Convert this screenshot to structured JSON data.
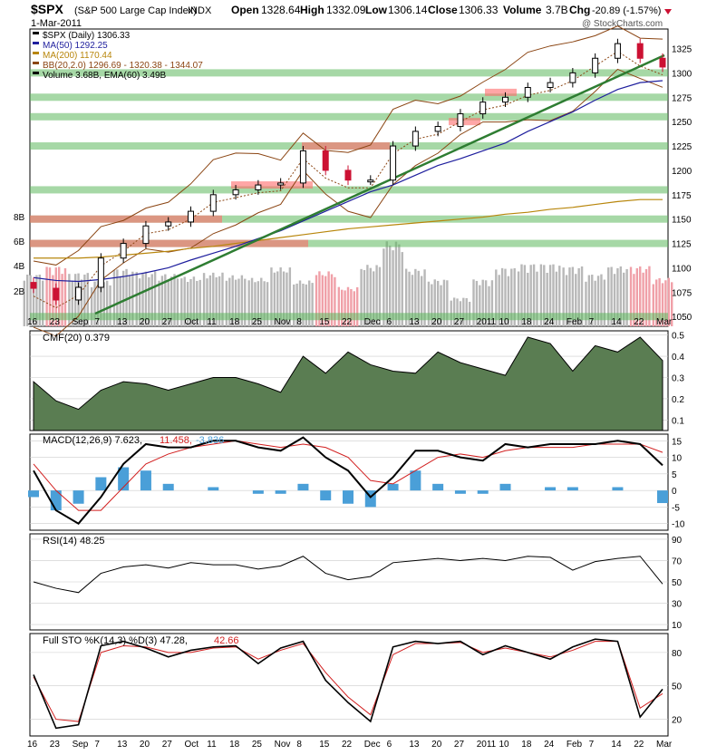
{
  "header": {
    "symbol": "$SPX",
    "name": "(S&P 500 Large Cap Index)",
    "exchange": "INDX",
    "date": "1-Mar-2011",
    "open_label": "Open",
    "open": "1328.64",
    "high_label": "High",
    "high": "1332.09",
    "low_label": "Low",
    "low": "1306.14",
    "close_label": "Close",
    "close": "1306.33",
    "volume_label": "Volume",
    "volume": "3.7B",
    "chg_label": "Chg",
    "chg": "-20.89 (-1.57%)",
    "watermark": "@ StockCharts.com"
  },
  "price_legend": [
    {
      "text": "$SPX (Daily) 1306.33",
      "color": "#000000"
    },
    {
      "text": "MA(50) 1292.25",
      "color": "#1f1f9e"
    },
    {
      "text": "MA(200) 1170.44",
      "color": "#b8860b"
    },
    {
      "text": "BB(20,2.0) 1296.69 - 1320.38 - 1344.07",
      "color": "#8b4513"
    },
    {
      "text": "Volume 3.68B, EMA(60) 3.49B",
      "color": "#000000"
    }
  ],
  "indicator_labels": {
    "cmf": "CMF(20) 0.379",
    "macd_prefix": "MACD(12,26,9) 7.623,",
    "macd_signal": "11.458,",
    "macd_hist": "-3.836",
    "rsi": "RSI(14) 48.25",
    "sto_prefix": "Full STO %K(14,3) %D(3) 47.28,",
    "sto_d": "42.66"
  },
  "x_axis_labels": [
    "16",
    "23",
    "Sep",
    "7",
    "13",
    "20",
    "27",
    "Oct",
    "11",
    "18",
    "25",
    "Nov",
    "8",
    "15",
    "22",
    "Dec",
    "6",
    "13",
    "20",
    "27",
    "2011",
    "10",
    "18",
    "24",
    "Feb",
    "7",
    "14",
    "22",
    "Mar"
  ],
  "colors": {
    "up": "#000000",
    "down": "#cc1133",
    "ma50": "#1f1f9e",
    "ma200": "#b8860b",
    "bb": "#8b4513",
    "trend": "#2e7d32",
    "support": "#5cb85c",
    "resist": "#ff6b6b",
    "cmf": "#5a7d52",
    "macd_hist": "#4a9fd8"
  },
  "chart_data": [
    {
      "type": "candlestick",
      "title": "$SPX (S&P 500 Large Cap Index)",
      "y_axis_right": [
        1050,
        1075,
        1100,
        1125,
        1150,
        1175,
        1200,
        1225,
        1250,
        1275,
        1300,
        1325
      ],
      "volume_axis_left": [
        "2B",
        "4B",
        "6B",
        "8B"
      ],
      "ylim": [
        1040,
        1345
      ],
      "x": [
        "Aug 16",
        "Aug 23",
        "Sep 1",
        "Sep 7",
        "Sep 13",
        "Sep 20",
        "Sep 27",
        "Oct 1",
        "Oct 11",
        "Oct 18",
        "Oct 25",
        "Nov 1",
        "Nov 8",
        "Nov 15",
        "Nov 22",
        "Dec 1",
        "Dec 6",
        "Dec 13",
        "Dec 20",
        "Dec 27",
        "Jan 3",
        "Jan 10",
        "Jan 18",
        "Jan 24",
        "Feb 1",
        "Feb 7",
        "Feb 14",
        "Feb 22",
        "Mar 1"
      ],
      "close": [
        1079,
        1067,
        1080,
        1110,
        1125,
        1143,
        1147,
        1158,
        1175,
        1180,
        1185,
        1187,
        1220,
        1200,
        1190,
        1190,
        1225,
        1240,
        1245,
        1258,
        1270,
        1275,
        1285,
        1290,
        1300,
        1315,
        1330,
        1315,
        1306
      ],
      "ma50": [
        1090,
        1087,
        1086,
        1088,
        1091,
        1095,
        1100,
        1108,
        1115,
        1122,
        1130,
        1138,
        1148,
        1158,
        1168,
        1178,
        1185,
        1195,
        1205,
        1212,
        1220,
        1228,
        1240,
        1250,
        1260,
        1272,
        1283,
        1290,
        1292
      ],
      "ma200": [
        1110,
        1110,
        1110,
        1111,
        1113,
        1115,
        1117,
        1120,
        1122,
        1125,
        1128,
        1131,
        1134,
        1137,
        1140,
        1142,
        1144,
        1146,
        1148,
        1150,
        1152,
        1155,
        1157,
        1160,
        1162,
        1165,
        1168,
        1170,
        1170
      ],
      "volume_billions": [
        4.0,
        4.6,
        4.1,
        3.5,
        4.4,
        4.2,
        4.0,
        3.8,
        4.1,
        3.9,
        3.7,
        4.5,
        3.5,
        4.2,
        3.0,
        4.7,
        6.5,
        4.4,
        3.6,
        2.2,
        3.6,
        4.5,
        4.8,
        4.8,
        4.6,
        4.0,
        4.6,
        4.6,
        3.7
      ],
      "support_levels": [
        1050,
        1125,
        1150,
        1180,
        1225,
        1255,
        1275,
        1300
      ],
      "resistance_levels": [
        1125,
        1150,
        1185,
        1225,
        1250,
        1280
      ]
    },
    {
      "type": "area",
      "title": "CMF(20) 0.379",
      "ylim": [
        0.05,
        0.52
      ],
      "y_ticks": [
        0.1,
        0.2,
        0.3,
        0.4,
        0.5
      ],
      "values": [
        0.28,
        0.19,
        0.15,
        0.24,
        0.28,
        0.27,
        0.24,
        0.27,
        0.3,
        0.3,
        0.27,
        0.23,
        0.4,
        0.32,
        0.42,
        0.36,
        0.33,
        0.32,
        0.42,
        0.37,
        0.34,
        0.31,
        0.49,
        0.46,
        0.33,
        0.45,
        0.42,
        0.49,
        0.38
      ]
    },
    {
      "type": "line",
      "title": "MACD(12,26,9)",
      "ylim": [
        -12,
        17
      ],
      "y_ticks": [
        -10,
        -5,
        0,
        5,
        10,
        15
      ],
      "macd": [
        6,
        -6,
        -10,
        -2,
        8,
        14,
        13,
        13,
        15,
        15,
        13,
        12,
        16,
        10,
        6,
        -2,
        4,
        12,
        12,
        10,
        9,
        14,
        13,
        14,
        14,
        14,
        15,
        14,
        7.6
      ],
      "signal": [
        8,
        0,
        -6,
        -6,
        1,
        8,
        11,
        13,
        14,
        15,
        14,
        13,
        14,
        13,
        10,
        3,
        2,
        6,
        10,
        11,
        10,
        12,
        13,
        13,
        13,
        14,
        14,
        14,
        11.5
      ],
      "histogram": [
        -2,
        -6,
        -4,
        4,
        7,
        6,
        2,
        0,
        1,
        0,
        -1,
        -1,
        2,
        -3,
        -4,
        -5,
        2,
        6,
        2,
        -1,
        -1,
        2,
        0,
        1,
        1,
        0,
        1,
        0,
        -3.8
      ]
    },
    {
      "type": "line",
      "title": "RSI(14) 48.25",
      "ylim": [
        5,
        95
      ],
      "y_ticks": [
        10,
        30,
        50,
        70,
        90
      ],
      "values": [
        50,
        44,
        40,
        58,
        64,
        66,
        63,
        68,
        66,
        66,
        62,
        65,
        74,
        58,
        52,
        55,
        68,
        70,
        72,
        70,
        72,
        70,
        74,
        73,
        61,
        69,
        72,
        74,
        48
      ]
    },
    {
      "type": "line",
      "title": "Full STO %K(14,3) %D(3)",
      "ylim": [
        5,
        97
      ],
      "y_ticks": [
        20,
        50,
        80
      ],
      "k": [
        60,
        12,
        15,
        86,
        90,
        84,
        76,
        82,
        85,
        86,
        70,
        84,
        90,
        55,
        35,
        18,
        85,
        90,
        88,
        90,
        78,
        86,
        80,
        74,
        85,
        92,
        90,
        22,
        47
      ],
      "d": [
        58,
        20,
        18,
        80,
        86,
        85,
        80,
        80,
        84,
        85,
        74,
        82,
        88,
        62,
        40,
        24,
        78,
        88,
        88,
        89,
        80,
        84,
        80,
        76,
        82,
        90,
        90,
        30,
        43
      ]
    }
  ]
}
